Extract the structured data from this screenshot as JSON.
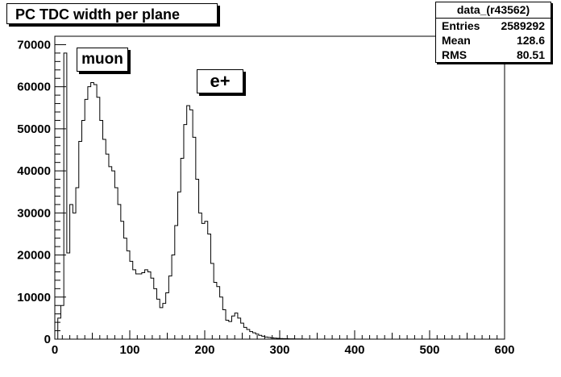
{
  "chart_data": {
    "type": "histogram",
    "title": "PC TDC width per plane",
    "xlabel": "",
    "ylabel": "",
    "xlim": [
      0,
      600
    ],
    "ylim": [
      0,
      72000
    ],
    "x_ticks": [
      0,
      100,
      200,
      300,
      400,
      500,
      600
    ],
    "y_ticks": [
      0,
      10000,
      20000,
      30000,
      40000,
      50000,
      60000,
      70000
    ],
    "grid": false,
    "bin_width": 4,
    "series": [
      {
        "name": "data_(r43562)",
        "points": [
          [
            0,
            0
          ],
          [
            4,
            5000
          ],
          [
            8,
            8000
          ],
          [
            12,
            68000
          ],
          [
            16,
            20500
          ],
          [
            20,
            32000
          ],
          [
            24,
            30000
          ],
          [
            28,
            36000
          ],
          [
            32,
            47000
          ],
          [
            36,
            52000
          ],
          [
            40,
            57000
          ],
          [
            44,
            60000
          ],
          [
            48,
            61000
          ],
          [
            52,
            60500
          ],
          [
            56,
            57500
          ],
          [
            60,
            52000
          ],
          [
            64,
            47500
          ],
          [
            68,
            44000
          ],
          [
            72,
            41000
          ],
          [
            76,
            40000
          ],
          [
            80,
            36000
          ],
          [
            84,
            32000
          ],
          [
            88,
            28000
          ],
          [
            92,
            24000
          ],
          [
            96,
            21000
          ],
          [
            100,
            18500
          ],
          [
            104,
            16500
          ],
          [
            108,
            15500
          ],
          [
            112,
            15500
          ],
          [
            116,
            15800
          ],
          [
            120,
            16500
          ],
          [
            124,
            16000
          ],
          [
            128,
            14500
          ],
          [
            132,
            12000
          ],
          [
            136,
            9500
          ],
          [
            140,
            7500
          ],
          [
            144,
            8500
          ],
          [
            148,
            11000
          ],
          [
            152,
            15000
          ],
          [
            156,
            20000
          ],
          [
            160,
            27000
          ],
          [
            164,
            35000
          ],
          [
            168,
            43000
          ],
          [
            172,
            51000
          ],
          [
            176,
            55500
          ],
          [
            180,
            54500
          ],
          [
            184,
            48000
          ],
          [
            188,
            38000
          ],
          [
            192,
            30000
          ],
          [
            196,
            27500
          ],
          [
            200,
            28000
          ],
          [
            204,
            25000
          ],
          [
            208,
            18000
          ],
          [
            212,
            13500
          ],
          [
            216,
            12500
          ],
          [
            220,
            10000
          ],
          [
            224,
            7000
          ],
          [
            228,
            4500
          ],
          [
            232,
            4200
          ],
          [
            236,
            5500
          ],
          [
            240,
            6200
          ],
          [
            244,
            5000
          ],
          [
            248,
            3800
          ],
          [
            252,
            2800
          ],
          [
            256,
            2300
          ],
          [
            260,
            1800
          ],
          [
            264,
            1500
          ],
          [
            268,
            1200
          ],
          [
            272,
            900
          ],
          [
            276,
            700
          ],
          [
            280,
            500
          ],
          [
            284,
            400
          ],
          [
            288,
            300
          ],
          [
            292,
            250
          ],
          [
            296,
            200
          ],
          [
            300,
            150
          ],
          [
            304,
            120
          ],
          [
            308,
            100
          ],
          [
            312,
            80
          ],
          [
            316,
            60
          ],
          [
            320,
            50
          ],
          [
            324,
            40
          ],
          [
            328,
            30
          ],
          [
            332,
            20
          ],
          [
            336,
            10
          ],
          [
            340,
            5
          ],
          [
            344,
            0
          ]
        ]
      }
    ],
    "stats": {
      "name": "data_(r43562)",
      "entries_label": "Entries",
      "entries": "2589292",
      "mean_label": "Mean",
      "mean": "128.6",
      "rms_label": "RMS",
      "rms": "80.51"
    },
    "annotations": [
      {
        "text": "muon"
      },
      {
        "text": "e+"
      }
    ]
  }
}
